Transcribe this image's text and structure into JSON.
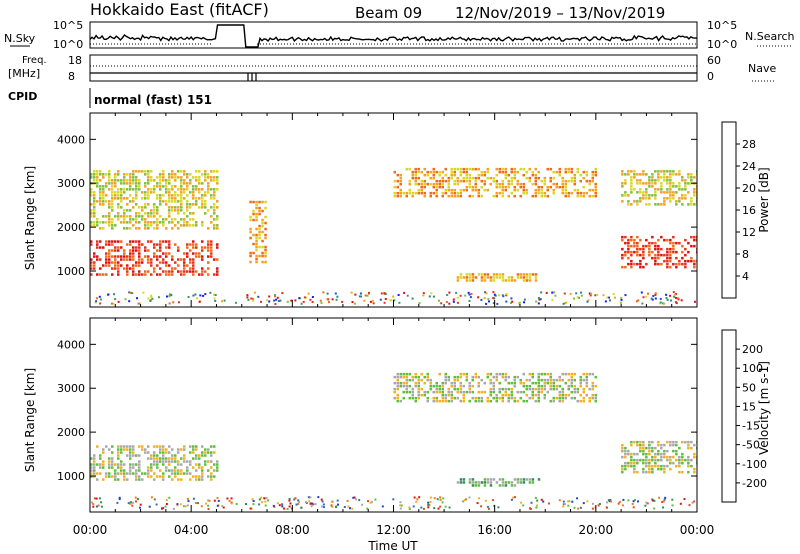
{
  "header": {
    "title": "Hokkaido East (fitACF)",
    "beam": "Beam 09",
    "date_range": "12/Nov/2019 – 13/Nov/2019"
  },
  "noise_panel": {
    "left_label": "N.Sky",
    "right_label": "N.Search",
    "left_ticks": [
      "10^5",
      "10^0"
    ],
    "right_ticks": [
      "10^5",
      "10^0"
    ]
  },
  "freq_panel": {
    "left_label_1": "Freq.",
    "left_label_2": "[MHz]",
    "right_label": "Nave",
    "left_ticks": [
      "18",
      "8"
    ],
    "right_ticks": [
      "60",
      "0"
    ]
  },
  "cpid_panel": {
    "label": "CPID",
    "mode_text": "normal (fast) 151"
  },
  "chart_data": [
    {
      "type": "heatmap",
      "quantity": "Power",
      "ylabel": "Slant Range [km]",
      "xlabel": "Time UT",
      "ylim": [
        180,
        4600
      ],
      "yticks": [
        1000,
        2000,
        3000,
        4000
      ],
      "xticks": [
        "00:00",
        "04:00",
        "08:00",
        "12:00",
        "16:00",
        "20:00",
        "00:00"
      ],
      "colorbar": {
        "label": "Power [dB]",
        "ticks": [
          "4",
          "8",
          "12",
          "16",
          "20",
          "24",
          "28"
        ],
        "colors": [
          "#1a1aff",
          "#1f4fcf",
          "#2f7f8f",
          "#3d9c5a",
          "#7fbf3a",
          "#d8d820",
          "#f4a020",
          "#f06a18",
          "#e8301a",
          "#e01010"
        ]
      },
      "regions": [
        {
          "t": [
            0.0,
            5.0
          ],
          "r": [
            900,
            1700
          ],
          "level": 8
        },
        {
          "t": [
            0.0,
            5.0
          ],
          "r": [
            2000,
            3300
          ],
          "level": 5
        },
        {
          "t": [
            6.3,
            6.9
          ],
          "r": [
            1200,
            2600
          ],
          "level": 6
        },
        {
          "t": [
            12.0,
            20.0
          ],
          "r": [
            2700,
            3350
          ],
          "level": 6
        },
        {
          "t": [
            14.5,
            17.8
          ],
          "r": [
            750,
            950
          ],
          "level": 6
        },
        {
          "t": [
            21.0,
            24.0
          ],
          "r": [
            1100,
            1800
          ],
          "level": 8
        },
        {
          "t": [
            21.0,
            24.0
          ],
          "r": [
            2500,
            3300
          ],
          "level": 5
        }
      ]
    },
    {
      "type": "heatmap",
      "quantity": "Velocity",
      "ylabel": "Slant Range [km]",
      "xlabel": "Time UT",
      "ylim": [
        180,
        4600
      ],
      "yticks": [
        1000,
        2000,
        3000,
        4000
      ],
      "xticks": [
        "00:00",
        "04:00",
        "08:00",
        "12:00",
        "16:00",
        "20:00",
        "00:00"
      ],
      "colorbar": {
        "label": "Velocity [m s-1]",
        "ticks": [
          "200",
          "100",
          "50",
          "15",
          "-15",
          "-50",
          "-100",
          "-200"
        ],
        "colors": [
          "#2a3fc8",
          "#2a70c0",
          "#2f8f5a",
          "#5fbf3a",
          "#a8a8a8",
          "#f4b020",
          "#f07a18",
          "#e84a18",
          "#e01010"
        ]
      },
      "regions": [
        {
          "t": [
            0.0,
            5.0
          ],
          "r": [
            900,
            1700
          ],
          "level": 4
        },
        {
          "t": [
            12.0,
            20.0
          ],
          "r": [
            2700,
            3350
          ],
          "level": 4
        },
        {
          "t": [
            14.5,
            17.8
          ],
          "r": [
            750,
            950
          ],
          "level": 3
        },
        {
          "t": [
            21.0,
            24.0
          ],
          "r": [
            1100,
            1800
          ],
          "level": 4
        }
      ]
    }
  ]
}
